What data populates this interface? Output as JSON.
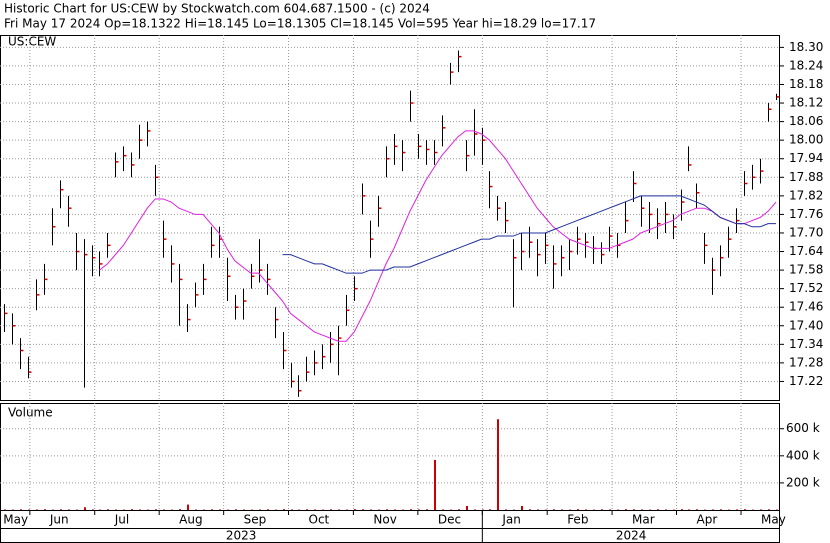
{
  "chart_data": {
    "type": "ohlc",
    "title": "Historic Chart for US:CEW by Stockwatch.com 604.687.1500 - (c) 2024",
    "subtitle": "Fri May 17 2024  Op=18.1322  Hi=18.145  Lo=18.1305  Cl=18.145  Vol=595  Year hi=18.29  lo=17.17",
    "symbol": "US:CEW",
    "bar_color": "#000000",
    "close_color": "#cc0000",
    "high": [
      17.47,
      17.44,
      17.36,
      17.3,
      17.55,
      17.6,
      17.78,
      17.87,
      17.82,
      17.7,
      17.68,
      17.66,
      17.64,
      17.7,
      17.96,
      17.98,
      17.96,
      18.05,
      18.06,
      17.92,
      17.74,
      17.66,
      17.6,
      17.47,
      17.54,
      17.6,
      17.72,
      17.72,
      17.62,
      17.5,
      17.52,
      17.6,
      17.68,
      17.6,
      17.46,
      17.38,
      17.28,
      17.24,
      17.3,
      17.32,
      17.34,
      17.38,
      17.4,
      17.5,
      17.56,
      17.86,
      17.74,
      17.82,
      17.98,
      18.02,
      18.0,
      18.16,
      18.02,
      18.0,
      18.0,
      18.08,
      18.25,
      18.29,
      18.0,
      18.1,
      18.04,
      17.9,
      17.82,
      17.8,
      17.68,
      17.7,
      17.72,
      17.68,
      17.7,
      17.66,
      17.66,
      17.68,
      17.72,
      17.7,
      17.69,
      17.67,
      17.72,
      17.7,
      17.8,
      17.9,
      17.82,
      17.8,
      17.78,
      17.8,
      17.76,
      17.84,
      17.98,
      17.86,
      17.7,
      17.62,
      17.66,
      17.72,
      17.78,
      17.9,
      17.92,
      17.94,
      18.12,
      18.15
    ],
    "low": [
      17.38,
      17.34,
      17.26,
      17.23,
      17.45,
      17.5,
      17.66,
      17.78,
      17.72,
      17.58,
      17.2,
      17.56,
      17.56,
      17.62,
      17.88,
      17.9,
      17.88,
      17.94,
      17.98,
      17.82,
      17.62,
      17.54,
      17.4,
      17.38,
      17.46,
      17.5,
      17.62,
      17.62,
      17.48,
      17.42,
      17.42,
      17.52,
      17.54,
      17.5,
      17.36,
      17.26,
      17.2,
      17.17,
      17.22,
      17.24,
      17.26,
      17.28,
      17.24,
      17.4,
      17.48,
      17.76,
      17.62,
      17.72,
      17.88,
      17.92,
      17.9,
      18.06,
      17.94,
      17.92,
      17.92,
      17.98,
      18.18,
      18.22,
      17.9,
      17.95,
      17.92,
      17.78,
      17.74,
      17.7,
      17.46,
      17.58,
      17.62,
      17.56,
      17.6,
      17.52,
      17.56,
      17.58,
      17.63,
      17.62,
      17.6,
      17.6,
      17.64,
      17.62,
      17.7,
      17.8,
      17.72,
      17.7,
      17.68,
      17.7,
      17.68,
      17.74,
      17.9,
      17.78,
      17.6,
      17.5,
      17.56,
      17.62,
      17.7,
      17.82,
      17.84,
      17.86,
      18.06,
      18.13
    ],
    "close": [
      17.44,
      17.4,
      17.32,
      17.25,
      17.5,
      17.55,
      17.72,
      17.84,
      17.78,
      17.64,
      17.63,
      17.62,
      17.6,
      17.66,
      17.93,
      17.95,
      17.92,
      18.0,
      18.03,
      17.88,
      17.68,
      17.6,
      17.55,
      17.42,
      17.5,
      17.55,
      17.66,
      17.68,
      17.56,
      17.46,
      17.48,
      17.56,
      17.58,
      17.55,
      17.42,
      17.32,
      17.22,
      17.19,
      17.25,
      17.28,
      17.3,
      17.34,
      17.36,
      17.45,
      17.52,
      17.82,
      17.68,
      17.78,
      17.94,
      17.98,
      17.96,
      18.12,
      17.98,
      17.97,
      17.96,
      18.04,
      18.22,
      18.27,
      17.95,
      18.02,
      18.0,
      17.85,
      17.78,
      17.74,
      17.62,
      17.64,
      17.67,
      17.63,
      17.66,
      17.6,
      17.62,
      17.64,
      17.68,
      17.67,
      17.65,
      17.63,
      17.69,
      17.66,
      17.74,
      17.86,
      17.78,
      17.76,
      17.73,
      17.76,
      17.72,
      17.8,
      17.92,
      17.83,
      17.66,
      17.58,
      17.62,
      17.68,
      17.74,
      17.86,
      17.88,
      17.9,
      18.1,
      18.14
    ],
    "moving_averages": [
      {
        "color": "#e020e0",
        "values": [
          null,
          null,
          null,
          null,
          null,
          null,
          null,
          null,
          null,
          null,
          null,
          null,
          17.58,
          17.6,
          17.63,
          17.66,
          17.7,
          17.74,
          17.78,
          17.81,
          17.81,
          17.8,
          17.78,
          17.77,
          17.76,
          17.76,
          17.73,
          17.7,
          17.65,
          17.61,
          17.59,
          17.57,
          17.57,
          17.54,
          17.51,
          17.48,
          17.44,
          17.42,
          17.4,
          17.38,
          17.37,
          17.36,
          17.35,
          17.35,
          17.38,
          17.43,
          17.48,
          17.54,
          17.6,
          17.65,
          17.71,
          17.77,
          17.82,
          17.87,
          17.91,
          17.95,
          17.98,
          18.01,
          18.03,
          18.03,
          18.02,
          18.0,
          17.97,
          17.94,
          17.9,
          17.86,
          17.82,
          17.78,
          17.75,
          17.72,
          17.7,
          17.68,
          17.67,
          17.66,
          17.65,
          17.65,
          17.65,
          17.66,
          17.67,
          17.68,
          17.7,
          17.71,
          17.72,
          17.73,
          17.74,
          17.76,
          17.77,
          17.78,
          17.78,
          17.77,
          17.75,
          17.74,
          17.73,
          17.73,
          17.74,
          17.75,
          17.77,
          17.8
        ]
      },
      {
        "color": "#2030a0",
        "values": [
          null,
          null,
          null,
          null,
          null,
          null,
          null,
          null,
          null,
          null,
          null,
          null,
          null,
          null,
          null,
          null,
          null,
          null,
          null,
          null,
          null,
          null,
          null,
          null,
          null,
          null,
          null,
          null,
          null,
          null,
          null,
          null,
          null,
          null,
          null,
          17.63,
          17.63,
          17.62,
          17.61,
          17.6,
          17.6,
          17.59,
          17.58,
          17.57,
          17.57,
          17.57,
          17.58,
          17.58,
          17.58,
          17.59,
          17.59,
          17.59,
          17.6,
          17.61,
          17.62,
          17.63,
          17.64,
          17.65,
          17.66,
          17.67,
          17.68,
          17.68,
          17.69,
          17.69,
          17.69,
          17.7,
          17.7,
          17.7,
          17.7,
          17.71,
          17.72,
          17.73,
          17.74,
          17.75,
          17.76,
          17.77,
          17.78,
          17.79,
          17.8,
          17.81,
          17.82,
          17.82,
          17.82,
          17.82,
          17.82,
          17.82,
          17.81,
          17.8,
          17.79,
          17.77,
          17.75,
          17.74,
          17.73,
          17.73,
          17.72,
          17.72,
          17.73,
          17.73
        ]
      }
    ],
    "ylim": [
      17.16,
      18.34
    ],
    "yticks": [
      {
        "value": 18.3,
        "label": "18.30"
      },
      18.24,
      18.18,
      18.12,
      18.06,
      {
        "value": 18.0,
        "label": "18.00"
      },
      17.94,
      17.88,
      17.82,
      17.76,
      {
        "value": 17.7,
        "label": "17.70"
      },
      17.64,
      17.58,
      17.52,
      17.46,
      {
        "value": 17.4,
        "label": "17.40"
      },
      17.34,
      17.28,
      17.22
    ],
    "grid": true,
    "xlim": [
      -0.5,
      97.5
    ],
    "xticks": [
      {
        "value": -2.6,
        "label": "May"
      },
      {
        "value": 3.25,
        "label": "Jun"
      },
      {
        "value": 11.4,
        "label": "Jul"
      },
      {
        "value": 19.5,
        "label": "Aug"
      },
      {
        "value": 27.6,
        "label": "Sep"
      },
      {
        "value": 35.75,
        "label": "Oct"
      },
      {
        "value": 43.9,
        "label": "Nov"
      },
      {
        "value": 52,
        "label": "Dec"
      },
      {
        "value": 60.1,
        "label": "Jan"
      },
      {
        "value": 68.25,
        "label": "Feb"
      },
      {
        "value": 76.4,
        "label": "Mar"
      },
      {
        "value": 84.5,
        "label": "Apr"
      },
      {
        "value": 92.6,
        "label": "May"
      }
    ],
    "year_labels": [
      "2023",
      "2024"
    ],
    "volume": {
      "label": "Volume",
      "color": "#cc0000",
      "values": [
        4000,
        3000,
        5000,
        3000,
        4000,
        6000,
        3000,
        5000,
        4000,
        3000,
        20000,
        4000,
        3000,
        5000,
        4000,
        3000,
        6000,
        4000,
        3000,
        5000,
        4000,
        3000,
        6000,
        40000,
        4000,
        3000,
        5000,
        4000,
        3000,
        5000,
        4000,
        3000,
        4000,
        5000,
        3000,
        6000,
        4000,
        3000,
        5000,
        4000,
        3000,
        5000,
        4000,
        3000,
        6000,
        5000,
        4000,
        3000,
        5000,
        4000,
        3000,
        6000,
        4000,
        5000,
        370000,
        4000,
        3000,
        5000,
        30000,
        4000,
        3000,
        5000,
        670000,
        4000,
        3000,
        30000,
        5000,
        4000,
        3000,
        5000,
        4000,
        3000,
        6000,
        4000,
        3000,
        5000,
        4000,
        3000,
        6000,
        5000,
        4000,
        3000,
        5000,
        4000,
        3000,
        6000,
        4000,
        5000,
        3000,
        4000,
        5000,
        3000,
        4000,
        6000,
        3000,
        4000,
        5000,
        3000
      ],
      "ylim": [
        0,
        790000
      ],
      "yticks": [
        {
          "value": 200000,
          "label": "200 k"
        },
        {
          "value": 400000,
          "label": "400 k"
        },
        {
          "value": 600000,
          "label": "600 k"
        }
      ]
    }
  }
}
